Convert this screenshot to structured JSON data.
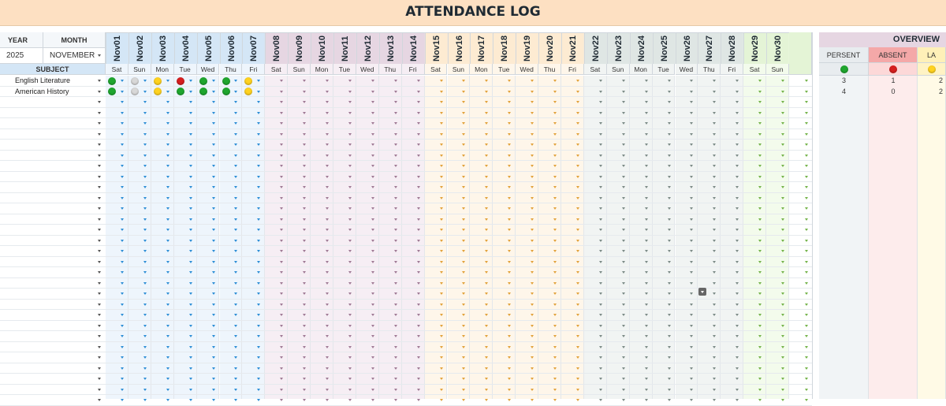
{
  "title": "ATTENDANCE LOG",
  "year_label": "YEAR",
  "month_label": "MONTH",
  "year_value": "2025",
  "month_value": "NOVEMBER",
  "subject_label": "SUBJECT",
  "subjects": [
    "English Literature",
    "American History"
  ],
  "days": [
    "Nov01",
    "Nov02",
    "Nov03",
    "Nov04",
    "Nov05",
    "Nov06",
    "Nov07",
    "Nov08",
    "Nov09",
    "Nov10",
    "Nov11",
    "Nov12",
    "Nov13",
    "Nov14",
    "Nov15",
    "Nov16",
    "Nov17",
    "Nov18",
    "Nov19",
    "Nov20",
    "Nov21",
    "Nov22",
    "Nov23",
    "Nov24",
    "Nov25",
    "Nov26",
    "Nov27",
    "Nov28",
    "Nov29",
    "Nov30"
  ],
  "weekdays": [
    "Sat",
    "Sun",
    "Mon",
    "Tue",
    "Wed",
    "Thu",
    "Fri",
    "Sat",
    "Sun",
    "Mon",
    "Tue",
    "Wed",
    "Thu",
    "Fri",
    "Sat",
    "Sun",
    "Mon",
    "Tue",
    "Wed",
    "Thu",
    "Fri",
    "Sat",
    "Sun",
    "Mon",
    "Tue",
    "Wed",
    "Thu",
    "Fri",
    "Sat",
    "Sun"
  ],
  "attendance": [
    [
      "present",
      "excused",
      "late",
      "absent",
      "present",
      "present",
      "late"
    ],
    [
      "present",
      "excused",
      "late",
      "present",
      "present",
      "present",
      "late"
    ]
  ],
  "overview": {
    "title": "OVERVIEW",
    "present_label": "PERSENT",
    "absent_label": "ABSENT",
    "late_label": "LA",
    "present_counts": [
      "3",
      "4"
    ],
    "absent_counts": [
      "1",
      "0"
    ],
    "late_counts": [
      "2",
      "2"
    ]
  },
  "colors": {
    "title_bg": "#fde0c2",
    "week1": "#d4e6f6",
    "week2": "#e6d6e2",
    "week3": "#fdebd2",
    "week4": "#dfe6e4",
    "week5": "#e4f4d6",
    "present": "#1fa62e",
    "absent": "#d61f1f",
    "late": "#ffd21f",
    "excused": "#d8d8d8"
  },
  "status_icons": {
    "present": "green-dot-icon",
    "absent": "red-dot-icon",
    "late": "yellow-dot-icon",
    "excused": "gray-dot-icon"
  }
}
